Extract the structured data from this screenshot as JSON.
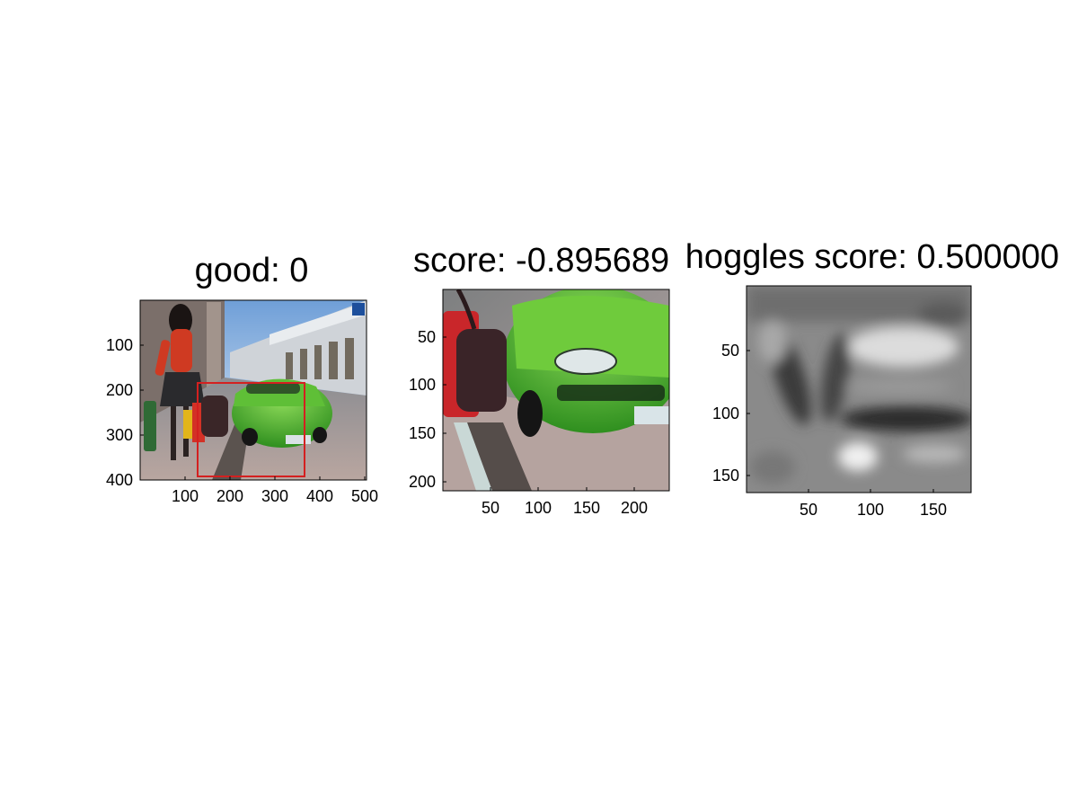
{
  "figure": {
    "panels": [
      {
        "title": "good: 0",
        "image_description_icon": "street-scene-photo",
        "x_ticks": [
          "100",
          "200",
          "300",
          "400",
          "500"
        ],
        "y_ticks": [
          "100",
          "200",
          "300",
          "400"
        ]
      },
      {
        "title": "score: -0.895689",
        "image_description_icon": "car-crop-photo",
        "x_ticks": [
          "50",
          "100",
          "150",
          "200"
        ],
        "y_ticks": [
          "50",
          "100",
          "150",
          "200"
        ]
      },
      {
        "title": "hoggles score: 0.500000",
        "image_description_icon": "hog-visualization-image",
        "x_ticks": [
          "50",
          "100",
          "150"
        ],
        "y_ticks": [
          "50",
          "100",
          "150"
        ]
      }
    ],
    "colors": {
      "bounding_box": "#d42020",
      "car_green": "#3fae2a",
      "coat_red": "#d8331f"
    }
  }
}
